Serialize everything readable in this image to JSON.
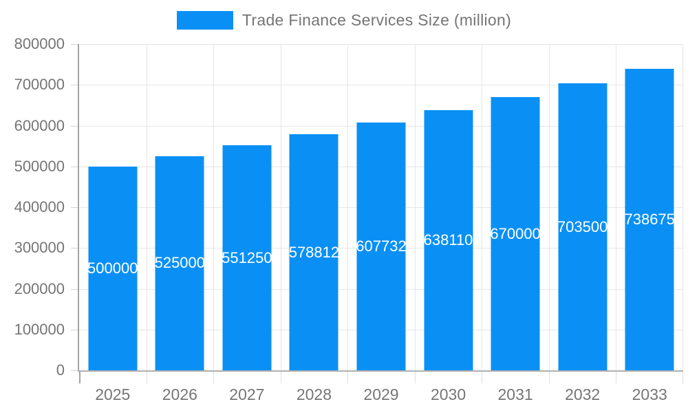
{
  "legend": {
    "label": "Trade Finance Services Size (million)",
    "swatch_color": "#0a90f5"
  },
  "chart_data": {
    "type": "bar",
    "title": "Trade Finance Services Size (million)",
    "categories": [
      "2025",
      "2026",
      "2027",
      "2028",
      "2029",
      "2030",
      "2031",
      "2032",
      "2033"
    ],
    "values": [
      500000,
      525000,
      551250,
      578812,
      607732,
      638110,
      670000,
      703500,
      738675
    ],
    "bar_labels": [
      "500000",
      "525000",
      "551250",
      "578812",
      "607732",
      "638110",
      "670000",
      "703500",
      "738675"
    ],
    "xlabel": "",
    "ylabel": "",
    "ylim": [
      0,
      800000
    ],
    "y_ticks": [
      0,
      100000,
      200000,
      300000,
      400000,
      500000,
      600000,
      700000,
      800000
    ],
    "y_tick_labels": [
      "0",
      "100000",
      "200000",
      "300000",
      "400000",
      "500000",
      "600000",
      "700000",
      "800000"
    ],
    "grid": true,
    "legend_position": "top"
  },
  "colors": {
    "bar": "#0a90f5",
    "bar_label_text": "#ffffff",
    "axis_text": "#757575",
    "gridline": "#e6e6e6",
    "axis_line": "#b0b0b0",
    "background": "#ffffff"
  }
}
